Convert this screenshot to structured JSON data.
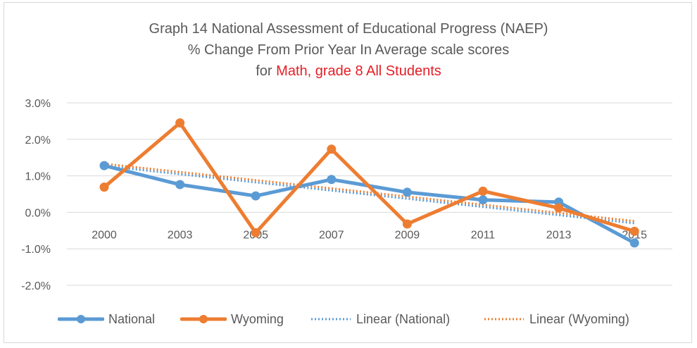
{
  "chart_data": {
    "type": "line",
    "title_lines": [
      "Graph 14 National Assessment of Educational Progress (NAEP)",
      "% Change From Prior Year In Average scale scores"
    ],
    "title_line3_prefix": "for ",
    "title_line3_highlight": "Math, grade 8 All Students",
    "highlight_color": "#e41e26",
    "categories": [
      "2000",
      "2003",
      "2005",
      "2007",
      "2009",
      "2011",
      "2013",
      "2015"
    ],
    "yticks": [
      "3.0%",
      "2.0%",
      "1.0%",
      "0.0%",
      "-1.0%",
      "-2.0%"
    ],
    "ylim": [
      -2.0,
      3.0
    ],
    "grid": true,
    "series": [
      {
        "name": "National",
        "color": "#5b9bd5",
        "values": [
          1.28,
          0.76,
          0.45,
          0.9,
          0.55,
          0.34,
          0.28,
          -0.84
        ]
      },
      {
        "name": "Wyoming",
        "color": "#ed7d31",
        "values": [
          0.69,
          2.45,
          -0.56,
          1.73,
          -0.32,
          0.58,
          0.12,
          -0.52
        ]
      }
    ],
    "trendlines": [
      {
        "name": "Linear (National)",
        "color": "#5b9bd5",
        "start": 1.27,
        "end": -0.3
      },
      {
        "name": "Linear (Wyoming)",
        "color": "#ed7d31",
        "start": 1.33,
        "end": -0.24
      }
    ],
    "legend_position": "bottom"
  }
}
